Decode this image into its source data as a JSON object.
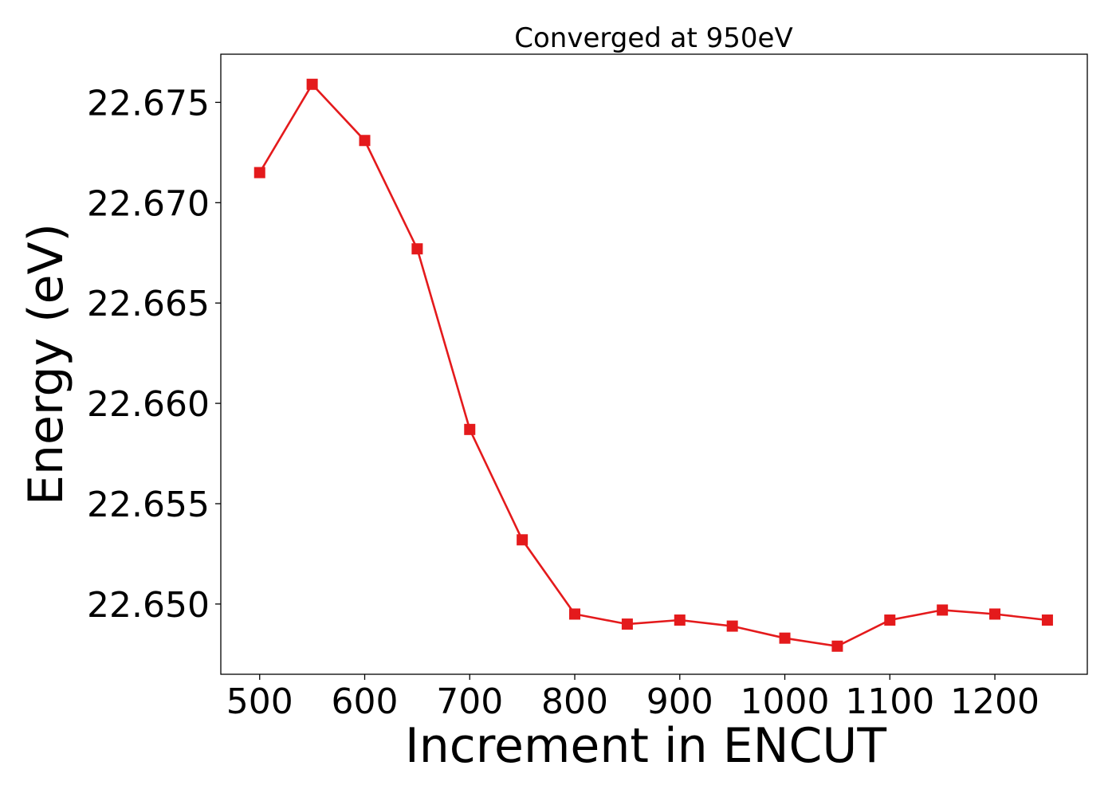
{
  "chart_data": {
    "type": "line",
    "title": "Converged at 950eV",
    "xlabel": "Increment in ENCUT",
    "ylabel": "Energy (eV)",
    "x": [
      500,
      550,
      600,
      650,
      700,
      750,
      800,
      850,
      900,
      950,
      1000,
      1050,
      1100,
      1150,
      1200,
      1250
    ],
    "series": [
      {
        "values": [
          22.6715,
          22.6759,
          22.6731,
          22.6677,
          22.6587,
          22.6532,
          22.6495,
          22.649,
          22.6492,
          22.6489,
          22.6483,
          22.6479,
          22.6492,
          22.6497,
          22.6495,
          22.6492
        ],
        "color": "#e41a1c",
        "marker": "square"
      }
    ],
    "xlim": [
      463,
      1288
    ],
    "ylim": [
      22.6465,
      22.6774
    ],
    "xticks": [
      500,
      600,
      700,
      800,
      900,
      1000,
      1100,
      1200
    ],
    "yticks": [
      22.65,
      22.655,
      22.66,
      22.665,
      22.67,
      22.675
    ],
    "xtick_labels": [
      "500",
      "600",
      "700",
      "800",
      "900",
      "1000",
      "1100",
      "1200"
    ],
    "ytick_labels": [
      "22.650",
      "22.655",
      "22.660",
      "22.665",
      "22.670",
      "22.675"
    ],
    "grid": false,
    "legend": "none"
  }
}
